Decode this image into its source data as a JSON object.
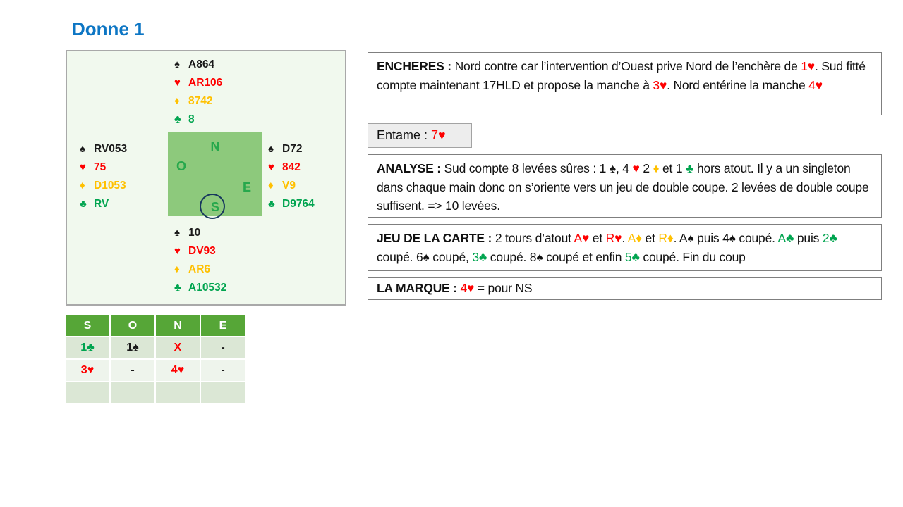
{
  "title": "Donne 1",
  "colors": {
    "spade": "#1a1a1a",
    "heart": "#fe0000",
    "diamond": "#ffc000",
    "club": "#00a44f",
    "plain": "#1a1a1a",
    "title": "#0d76c4",
    "panel_bg": "#f1f9ee",
    "compass_bg": "#8dc97c",
    "compass_letter": "#27a84c",
    "circle": "#17375e",
    "table_header_bg": "#56a637",
    "table_row_a": "#dbe7d5",
    "table_row_b": "#eef4ec"
  },
  "suit_symbols": {
    "spade": "♠",
    "heart": "♥",
    "diamond": "♦",
    "club": "♣"
  },
  "compass": {
    "north": "N",
    "west": "O",
    "east": "E",
    "south": "S"
  },
  "hands": {
    "north": [
      {
        "suit": "spade",
        "cards": "A864"
      },
      {
        "suit": "heart",
        "cards": "AR106"
      },
      {
        "suit": "diamond",
        "cards": "8742"
      },
      {
        "suit": "club",
        "cards": "8"
      }
    ],
    "west": [
      {
        "suit": "spade",
        "cards": "RV053"
      },
      {
        "suit": "heart",
        "cards": "75"
      },
      {
        "suit": "diamond",
        "cards": "D1053"
      },
      {
        "suit": "club",
        "cards": "RV"
      }
    ],
    "east": [
      {
        "suit": "spade",
        "cards": "D72"
      },
      {
        "suit": "heart",
        "cards": "842"
      },
      {
        "suit": "diamond",
        "cards": "V9"
      },
      {
        "suit": "club",
        "cards": "D9764"
      }
    ],
    "south": [
      {
        "suit": "spade",
        "cards": "10"
      },
      {
        "suit": "heart",
        "cards": "DV93"
      },
      {
        "suit": "diamond",
        "cards": "AR6"
      },
      {
        "suit": "club",
        "cards": "A10532"
      }
    ]
  },
  "bid_table": {
    "headers": [
      "S",
      "O",
      "N",
      "E"
    ],
    "rows": [
      [
        {
          "t": "1♣",
          "c": "club"
        },
        {
          "t": "1♠",
          "c": "spade"
        },
        {
          "t": "X",
          "c": "heart"
        },
        {
          "t": "-",
          "c": "plain"
        }
      ],
      [
        {
          "t": "3♥",
          "c": "heart"
        },
        {
          "t": "-",
          "c": "plain"
        },
        {
          "t": "4♥",
          "c": "heart"
        },
        {
          "t": "-",
          "c": "plain"
        }
      ],
      [
        {
          "t": "",
          "c": "plain"
        },
        {
          "t": "",
          "c": "plain"
        },
        {
          "t": "",
          "c": "plain"
        },
        {
          "t": "",
          "c": "plain"
        }
      ]
    ]
  },
  "boxes": {
    "encheres": {
      "segments": [
        {
          "t": "ENCHERES : ",
          "b": true
        },
        {
          "t": "Nord contre car l’intervention d’Ouest prive Nord de l’enchère de "
        },
        {
          "t": "1♥",
          "c": "heart"
        },
        {
          "t": ". Sud fitté compte maintenant 17HLD et propose la manche à "
        },
        {
          "t": "3♥",
          "c": "heart"
        },
        {
          "t": ". Nord entérine la manche "
        },
        {
          "t": "4♥",
          "c": "heart"
        }
      ]
    },
    "entame": {
      "segments": [
        {
          "t": "Entame : "
        },
        {
          "t": "7♥",
          "c": "heart"
        }
      ]
    },
    "analyse": {
      "segments": [
        {
          "t": "ANALYSE : ",
          "b": true
        },
        {
          "t": "Sud compte 8 levées sûres : 1 "
        },
        {
          "t": "♠",
          "c": "spade"
        },
        {
          "t": ", 4 "
        },
        {
          "t": "♥",
          "c": "heart"
        },
        {
          "t": " 2 "
        },
        {
          "t": "♦",
          "c": "diamond"
        },
        {
          "t": " et 1 "
        },
        {
          "t": "♣",
          "c": "club"
        },
        {
          "t": " hors atout. Il y a un singleton dans chaque main donc on s’oriente vers un jeu de double coupe. 2 levées de double coupe suffisent. => 10 levées."
        }
      ]
    },
    "jeu": {
      "segments": [
        {
          "t": "JEU DE LA CARTE : ",
          "b": true
        },
        {
          "t": "2 tours d’atout "
        },
        {
          "t": "A♥",
          "c": "heart"
        },
        {
          "t": " et "
        },
        {
          "t": "R♥",
          "c": "heart"
        },
        {
          "t": ". "
        },
        {
          "t": "A♦",
          "c": "diamond"
        },
        {
          "t": " et "
        },
        {
          "t": "R♦",
          "c": "diamond"
        },
        {
          "t": ". A♠ puis 4♠ coupé. "
        },
        {
          "t": "A♣",
          "c": "club"
        },
        {
          "t": " puis "
        },
        {
          "t": "2♣",
          "c": "club"
        },
        {
          "t": " coupé. 6♠ coupé, "
        },
        {
          "t": "3♣",
          "c": "club"
        },
        {
          "t": " coupé. 8♠ coupé et enfin "
        },
        {
          "t": "5♣",
          "c": "club"
        },
        {
          "t": " coupé. Fin du coup"
        }
      ]
    },
    "marque": {
      "segments": [
        {
          "t": "LA MARQUE : ",
          "b": true
        },
        {
          "t": "4♥",
          "c": "heart"
        },
        {
          "t": " = pour NS"
        }
      ]
    }
  }
}
